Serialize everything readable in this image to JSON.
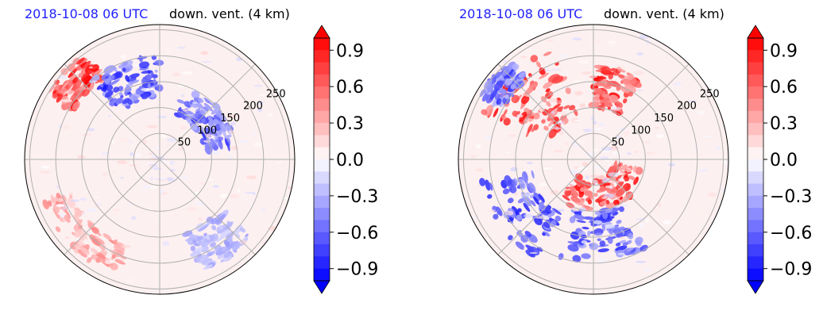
{
  "colors": {
    "strong_neg": "#0000ff",
    "strong_pos": "#ff0000",
    "zero": "#ffffff",
    "grid": "#b0b0b0"
  },
  "chart_data": [
    {
      "type": "heatmap",
      "projection": "polar",
      "date_label": "2018-10-08 06 UTC",
      "title": "down. vent. (4 km)",
      "radial_ticks": [
        50,
        100,
        150,
        200,
        250
      ],
      "angular_gridlines_deg": [
        0,
        45,
        90,
        135,
        180,
        225,
        270,
        315
      ],
      "colorbar": {
        "colormap": "bwr",
        "range": [
          -1.0,
          1.0
        ],
        "extend": "both",
        "ticks": [
          -0.9,
          -0.6,
          -0.3,
          0.0,
          0.3,
          0.6,
          0.9
        ],
        "tick_labels": [
          "−0.9",
          "−0.6",
          "−0.3",
          "0.0",
          "0.3",
          "0.6",
          "0.9"
        ]
      },
      "features": [
        {
          "kind": "positive band",
          "strength": 0.5,
          "azimuth_deg": [
            200,
            250
          ],
          "radius": [
            180,
            240
          ]
        },
        {
          "kind": "positive cluster",
          "strength": 1.0,
          "azimuth_deg": [
            300,
            325
          ],
          "radius": [
            190,
            250
          ]
        },
        {
          "kind": "negative arc",
          "strength": -0.8,
          "azimuth_deg": [
            20,
            80
          ],
          "radius": [
            90,
            150
          ]
        },
        {
          "kind": "negative streaks",
          "strength": -0.9,
          "azimuth_deg": [
            320,
            360
          ],
          "radius": [
            120,
            200
          ]
        },
        {
          "kind": "negative patch",
          "strength": -0.4,
          "azimuth_deg": [
            130,
            160
          ],
          "radius": [
            150,
            230
          ]
        }
      ]
    },
    {
      "type": "heatmap",
      "projection": "polar",
      "date_label": "2018-10-08 06 UTC",
      "title": "down. vent. (4 km)",
      "radial_ticks": [
        50,
        100,
        150,
        200,
        250
      ],
      "angular_gridlines_deg": [
        0,
        45,
        90,
        135,
        180,
        225,
        270,
        315
      ],
      "colorbar": {
        "colormap": "bwr",
        "range": [
          -1.0,
          1.0
        ],
        "extend": "both",
        "ticks": [
          -0.9,
          -0.6,
          -0.3,
          0.0,
          0.3,
          0.6,
          0.9
        ],
        "tick_labels": [
          "−0.9",
          "−0.6",
          "−0.3",
          "0.0",
          "0.3",
          "0.6",
          "0.9"
        ]
      },
      "features": [
        {
          "kind": "positive ring",
          "strength": 1.0,
          "azimuth_deg": [
            100,
            220
          ],
          "radius": [
            40,
            100
          ]
        },
        {
          "kind": "positive band",
          "strength": 1.0,
          "azimuth_deg": [
            290,
            340
          ],
          "radius": [
            90,
            230
          ]
        },
        {
          "kind": "positive cluster",
          "strength": 1.0,
          "azimuth_deg": [
            0,
            30
          ],
          "radius": [
            100,
            180
          ]
        },
        {
          "kind": "negative arc",
          "strength": -0.9,
          "azimuth_deg": [
            150,
            200
          ],
          "radius": [
            100,
            200
          ]
        },
        {
          "kind": "negative streaks",
          "strength": -0.9,
          "azimuth_deg": [
            210,
            260
          ],
          "radius": [
            120,
            220
          ]
        },
        {
          "kind": "negative streaks",
          "strength": -0.8,
          "azimuth_deg": [
            300,
            320
          ],
          "radius": [
            200,
            250
          ]
        }
      ]
    }
  ]
}
